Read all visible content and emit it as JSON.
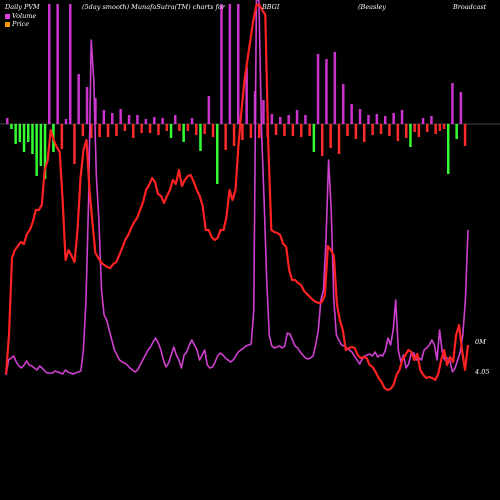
{
  "header": {
    "left": "Daily PVM",
    "mid": "(5day smooth) MunafaSutra(TM) charts for",
    "symbol": "BBGI",
    "company": "(Beasley",
    "company2": "Broadcast"
  },
  "legend": {
    "volume_label": "Volume",
    "price_label": "Price",
    "volume_color": "#e040e0",
    "price_color": "#ff9900"
  },
  "labels": {
    "volume_axis": "0M",
    "price_axis": "4.05"
  },
  "colors": {
    "up_bar": "#cc33cc",
    "down_bar": "#ff2a2a",
    "green_bar": "#33ff33",
    "price_line": "#ff2222",
    "volume_line": "#d040d0",
    "baseline": "#888888"
  },
  "chart_data": {
    "type": "bar",
    "bars": [
      {
        "v": 6,
        "c": "u"
      },
      {
        "v": -5,
        "c": "g"
      },
      {
        "v": -20,
        "c": "g"
      },
      {
        "v": -18,
        "c": "g"
      },
      {
        "v": -28,
        "c": "g"
      },
      {
        "v": -18,
        "c": "g"
      },
      {
        "v": -30,
        "c": "g"
      },
      {
        "v": -52,
        "c": "g"
      },
      {
        "v": -42,
        "c": "g"
      },
      {
        "v": -55,
        "c": "g"
      },
      {
        "v": 120,
        "c": "u"
      },
      {
        "v": -28,
        "c": "g"
      },
      {
        "v": 120,
        "c": "u"
      },
      {
        "v": -25,
        "c": "d"
      },
      {
        "v": 5,
        "c": "u"
      },
      {
        "v": 120,
        "c": "u"
      },
      {
        "v": -40,
        "c": "d"
      },
      {
        "v": 50,
        "c": "u"
      },
      {
        "v": -12,
        "c": "d"
      },
      {
        "v": 37,
        "c": "u"
      },
      {
        "v": -14,
        "c": "d"
      },
      {
        "v": 26,
        "c": "u"
      },
      {
        "v": -13,
        "c": "d"
      },
      {
        "v": 14,
        "c": "u"
      },
      {
        "v": -13,
        "c": "d"
      },
      {
        "v": 11,
        "c": "u"
      },
      {
        "v": -12,
        "c": "d"
      },
      {
        "v": 15,
        "c": "u"
      },
      {
        "v": -7,
        "c": "d"
      },
      {
        "v": 9,
        "c": "u"
      },
      {
        "v": -14,
        "c": "d"
      },
      {
        "v": 9,
        "c": "u"
      },
      {
        "v": -9,
        "c": "d"
      },
      {
        "v": 5,
        "c": "u"
      },
      {
        "v": -9,
        "c": "d"
      },
      {
        "v": 7,
        "c": "u"
      },
      {
        "v": -11,
        "c": "d"
      },
      {
        "v": 6,
        "c": "u"
      },
      {
        "v": -7,
        "c": "d"
      },
      {
        "v": -14,
        "c": "g"
      },
      {
        "v": 9,
        "c": "u"
      },
      {
        "v": -7,
        "c": "d"
      },
      {
        "v": -18,
        "c": "g"
      },
      {
        "v": -7,
        "c": "d"
      },
      {
        "v": 6,
        "c": "u"
      },
      {
        "v": -11,
        "c": "d"
      },
      {
        "v": -27,
        "c": "g"
      },
      {
        "v": -10,
        "c": "d"
      },
      {
        "v": 28,
        "c": "u"
      },
      {
        "v": -13,
        "c": "d"
      },
      {
        "v": -60,
        "c": "g"
      },
      {
        "v": 120,
        "c": "u"
      },
      {
        "v": -26,
        "c": "d"
      },
      {
        "v": 120,
        "c": "u"
      },
      {
        "v": -22,
        "c": "d"
      },
      {
        "v": 120,
        "c": "u"
      },
      {
        "v": -16,
        "c": "d"
      },
      {
        "v": 57,
        "c": "u"
      },
      {
        "v": -14,
        "c": "d"
      },
      {
        "v": 33,
        "c": "u"
      },
      {
        "v": -14,
        "c": "d"
      },
      {
        "v": 24,
        "c": "u"
      },
      {
        "v": -13,
        "c": "d"
      },
      {
        "v": 10,
        "c": "u"
      },
      {
        "v": -11,
        "c": "d"
      },
      {
        "v": 7,
        "c": "u"
      },
      {
        "v": -12,
        "c": "d"
      },
      {
        "v": 9,
        "c": "u"
      },
      {
        "v": -12,
        "c": "d"
      },
      {
        "v": 14,
        "c": "u"
      },
      {
        "v": -13,
        "c": "d"
      },
      {
        "v": 9,
        "c": "u"
      },
      {
        "v": -12,
        "c": "d"
      },
      {
        "v": -28,
        "c": "g"
      },
      {
        "v": 70,
        "c": "u"
      },
      {
        "v": -32,
        "c": "d"
      },
      {
        "v": 65,
        "c": "u"
      },
      {
        "v": -24,
        "c": "d"
      },
      {
        "v": 72,
        "c": "u"
      },
      {
        "v": -30,
        "c": "d"
      },
      {
        "v": 40,
        "c": "u"
      },
      {
        "v": -12,
        "c": "d"
      },
      {
        "v": 20,
        "c": "u"
      },
      {
        "v": -15,
        "c": "d"
      },
      {
        "v": 15,
        "c": "u"
      },
      {
        "v": -18,
        "c": "d"
      },
      {
        "v": 9,
        "c": "u"
      },
      {
        "v": -11,
        "c": "d"
      },
      {
        "v": 10,
        "c": "u"
      },
      {
        "v": -10,
        "c": "d"
      },
      {
        "v": 8,
        "c": "u"
      },
      {
        "v": -12,
        "c": "d"
      },
      {
        "v": 11,
        "c": "u"
      },
      {
        "v": -17,
        "c": "d"
      },
      {
        "v": 14,
        "c": "u"
      },
      {
        "v": -14,
        "c": "d"
      },
      {
        "v": -23,
        "c": "g"
      },
      {
        "v": -8,
        "c": "d"
      },
      {
        "v": -13,
        "c": "d"
      },
      {
        "v": 6,
        "c": "u"
      },
      {
        "v": -8,
        "c": "d"
      },
      {
        "v": 8,
        "c": "u"
      },
      {
        "v": -10,
        "c": "d"
      },
      {
        "v": -7,
        "c": "d"
      },
      {
        "v": -5,
        "c": "d"
      },
      {
        "v": -50,
        "c": "g"
      },
      {
        "v": 41,
        "c": "u"
      },
      {
        "v": -15,
        "c": "g"
      },
      {
        "v": 32,
        "c": "u"
      },
      {
        "v": -22,
        "c": "d"
      }
    ],
    "price": [
      374,
      335,
      258,
      250,
      246,
      242,
      244,
      234,
      230,
      222,
      210,
      210,
      205,
      170,
      160,
      130,
      140,
      147,
      152,
      200,
      260,
      250,
      256,
      262,
      230,
      178,
      150,
      140,
      190,
      222,
      253,
      258,
      263,
      265,
      267,
      268,
      264,
      262,
      255,
      248,
      240,
      235,
      228,
      222,
      218,
      210,
      202,
      190,
      185,
      178,
      182,
      194,
      196,
      203,
      196,
      190,
      180,
      184,
      170,
      186,
      180,
      176,
      175,
      182,
      190,
      196,
      206,
      230,
      230,
      237,
      240,
      238,
      230,
      230,
      216,
      190,
      200,
      190,
      145,
      110,
      80,
      60,
      40,
      20,
      5,
      5,
      10,
      15,
      145,
      230,
      232,
      233,
      235,
      244,
      247,
      270,
      280,
      280,
      283,
      285,
      291,
      294,
      297,
      300,
      302,
      303,
      302,
      295,
      246,
      250,
      256,
      304,
      320,
      330,
      350,
      348,
      347,
      348,
      355,
      358,
      357,
      358,
      365,
      367,
      372,
      378,
      382,
      388,
      390,
      389,
      385,
      375,
      370,
      360,
      355,
      350,
      352,
      360,
      354,
      370,
      375,
      378,
      377,
      378,
      380,
      374,
      360,
      350,
      365,
      357,
      362,
      335,
      325,
      350,
      370,
      345
    ],
    "volume": [
      375,
      360,
      358,
      356,
      362,
      366,
      368,
      365,
      361,
      365,
      366,
      368,
      370,
      366,
      368,
      371,
      373,
      373,
      373,
      371,
      372,
      373,
      374,
      370,
      372,
      373,
      374,
      373,
      372,
      371,
      350,
      300,
      200,
      40,
      80,
      175,
      220,
      290,
      315,
      320,
      330,
      340,
      350,
      355,
      360,
      362,
      363,
      365,
      368,
      370,
      372,
      370,
      365,
      360,
      355,
      350,
      347,
      342,
      338,
      343,
      350,
      360,
      367,
      363,
      355,
      347,
      355,
      360,
      368,
      355,
      352,
      345,
      340,
      345,
      350,
      360,
      355,
      350,
      365,
      368,
      367,
      362,
      356,
      353,
      355,
      358,
      360,
      362,
      360,
      356,
      352,
      350,
      348,
      346,
      345,
      344,
      310,
      0,
      0,
      130,
      200,
      280,
      335,
      346,
      348,
      347,
      346,
      348,
      346,
      333,
      334,
      340,
      346,
      348,
      352,
      355,
      358,
      359,
      358,
      356,
      345,
      330,
      300,
      290,
      240,
      160,
      210,
      300,
      335,
      340,
      345,
      346,
      348,
      350,
      352,
      356,
      360,
      364,
      359,
      356,
      355,
      354,
      356,
      352,
      357,
      355,
      356,
      350,
      338,
      345,
      330,
      300,
      350,
      362,
      355,
      368,
      364,
      353,
      353,
      360,
      358,
      360,
      350,
      348,
      345,
      340,
      345,
      360,
      330,
      352,
      360,
      358,
      361,
      372,
      368,
      360,
      352,
      335,
      300,
      230
    ]
  }
}
